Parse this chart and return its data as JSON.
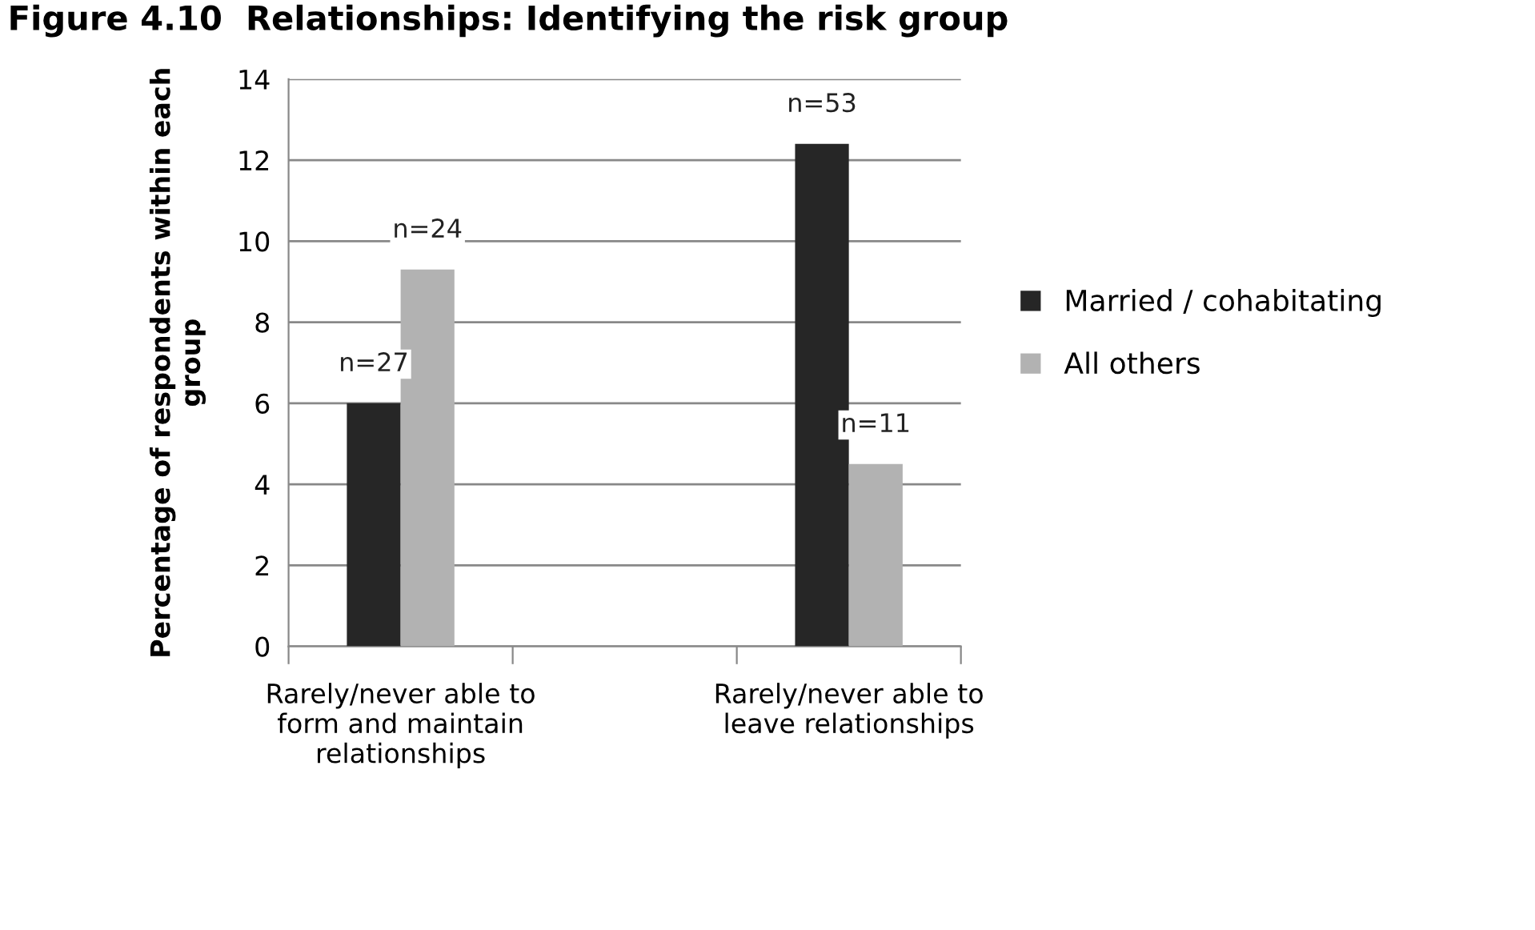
{
  "chart_data": {
    "type": "bar",
    "title": "Figure 4.10  Relationships: Identifying the risk group",
    "ylabel": "Percentage of respondents within each group",
    "categories": [
      "Rarely/never able to form and maintain relationships",
      null,
      "Rarely/never able to leave relationships"
    ],
    "series": [
      {
        "name": "Married / cohabitating",
        "color": "#262626",
        "values": [
          6.0,
          null,
          12.4
        ]
      },
      {
        "name": "All others",
        "color": "#b2b2b2",
        "values": [
          9.3,
          null,
          4.5
        ]
      }
    ],
    "annotations": [
      "n=27",
      "n=53",
      "n=24",
      "n=11"
    ],
    "ylim": [
      0,
      14
    ],
    "yticks": [
      0,
      2,
      4,
      6,
      8,
      10,
      12,
      14
    ],
    "grid": "y",
    "legend": "right"
  }
}
